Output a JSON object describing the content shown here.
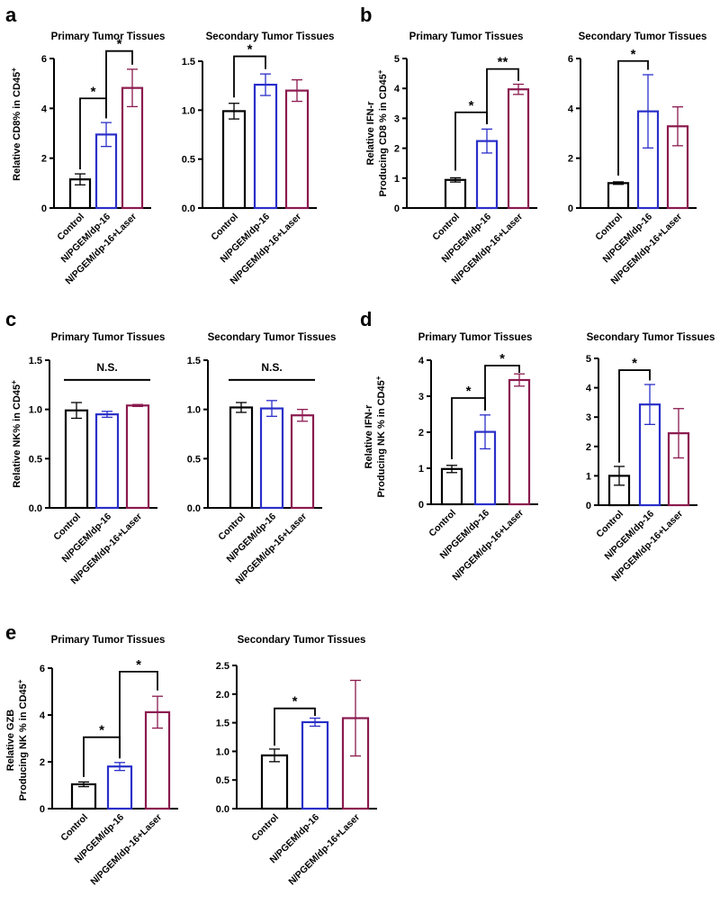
{
  "colors": {
    "control": "#000000",
    "n_pgem": "#2a2fc8",
    "laser": "#8b1a4f"
  },
  "chart_data": [
    {
      "type": "bar",
      "panel": "a",
      "title": "Primary Tumor Tissues",
      "ylabel": "Relative CD8% in CD45",
      "ylabel_sup": "+",
      "categories": [
        "Control",
        "N/PGEM/dp-16",
        "N/PGEM/dp-16+Laser"
      ],
      "values": [
        1.15,
        2.95,
        4.82
      ],
      "errors": [
        0.22,
        0.48,
        0.75
      ],
      "ylim": [
        0,
        6
      ],
      "yticks": [
        0,
        2,
        4,
        6
      ],
      "ytick_labels": [
        "0",
        "2",
        "4",
        "6"
      ],
      "annotations": [
        {
          "from": 0,
          "to": 1,
          "y": 4.4,
          "drop_from": 1.55,
          "drop_to": 3.6,
          "label": "*"
        },
        {
          "from": 1,
          "to": 2,
          "y": 6.3,
          "drop_from": 3.6,
          "drop_to": 5.75,
          "label": "*"
        }
      ]
    },
    {
      "type": "bar",
      "panel": "a2",
      "title": "Secondary Tumor Tissues",
      "ylabel": "",
      "categories": [
        "Control",
        "N/PGEM/dp-16",
        "N/PGEM/dp-16+Laser"
      ],
      "values": [
        0.99,
        1.26,
        1.2
      ],
      "errors": [
        0.08,
        0.11,
        0.11
      ],
      "ylim": [
        0,
        1.5
      ],
      "yticks": [
        0,
        0.5,
        1,
        1.5
      ],
      "ytick_labels": [
        "0.0",
        "0.5",
        "1.0",
        "1.5"
      ],
      "annotations": [
        {
          "from": 0,
          "to": 1,
          "y": 1.55,
          "drop_from": 1.13,
          "drop_to": 1.42,
          "label": "*"
        }
      ]
    },
    {
      "type": "bar",
      "panel": "b",
      "title": "Primary Tumor Tissues",
      "ylabel": "Relative IFN-r",
      "ylabel2": "Producing CD8 % in CD45",
      "ylabel_sup": "+",
      "categories": [
        "Control",
        "N/PGEM/dp-16",
        "N/PGEM/dp-16+Laser"
      ],
      "values": [
        0.94,
        2.24,
        3.97
      ],
      "errors": [
        0.07,
        0.4,
        0.17
      ],
      "ylim": [
        0,
        5
      ],
      "yticks": [
        0,
        1,
        2,
        3,
        4,
        5
      ],
      "ytick_labels": [
        "0",
        "1",
        "2",
        "3",
        "4",
        "5"
      ],
      "annotations": [
        {
          "from": 0,
          "to": 1,
          "y": 3.2,
          "drop_from": 1.25,
          "drop_to": 2.8,
          "label": "*"
        },
        {
          "from": 1,
          "to": 2,
          "y": 4.65,
          "drop_from": 2.8,
          "drop_to": 4.25,
          "label": "**"
        }
      ]
    },
    {
      "type": "bar",
      "panel": "b2",
      "title": "Secondary Tumor Tissues",
      "ylabel": "",
      "categories": [
        "Control",
        "N/PGEM/dp-16",
        "N/PGEM/dp-16+Laser"
      ],
      "values": [
        1.0,
        3.88,
        3.28
      ],
      "errors": [
        0.05,
        1.47,
        0.78
      ],
      "ylim": [
        0,
        6
      ],
      "yticks": [
        0,
        2,
        4,
        6
      ],
      "ytick_labels": [
        "0",
        "2",
        "4",
        "6"
      ],
      "annotations": [
        {
          "from": 0,
          "to": 1,
          "y": 5.9,
          "drop_from": 1.3,
          "drop_to": 5.55,
          "label": "*"
        }
      ]
    },
    {
      "type": "bar",
      "panel": "c",
      "title": "Primary Tumor Tissues",
      "ylabel": "Relative NK% in CD45",
      "ylabel_sup": "+",
      "categories": [
        "Control",
        "N/PGEM/dp-16",
        "N/PGEM/dp-16+Laser"
      ],
      "values": [
        0.99,
        0.95,
        1.04
      ],
      "errors": [
        0.08,
        0.03,
        0.01
      ],
      "ylim": [
        0,
        1.5
      ],
      "yticks": [
        0,
        0.5,
        1,
        1.5
      ],
      "ytick_labels": [
        "0.0",
        "0.5",
        "1.0",
        "1.5"
      ],
      "ns_line": {
        "y": 1.3,
        "label": "N.S."
      }
    },
    {
      "type": "bar",
      "panel": "c2",
      "title": "Secondary Tumor Tissues",
      "ylabel": "",
      "categories": [
        "Control",
        "N/PGEM/dp-16",
        "N/PGEM/dp-16+Laser"
      ],
      "values": [
        1.02,
        1.01,
        0.94
      ],
      "errors": [
        0.05,
        0.08,
        0.06
      ],
      "ylim": [
        0,
        1.5
      ],
      "yticks": [
        0,
        0.5,
        1,
        1.5
      ],
      "ytick_labels": [
        "0.0",
        "0.5",
        "1.0",
        "1.5"
      ],
      "ns_line": {
        "y": 1.3,
        "label": "N.S."
      }
    },
    {
      "type": "bar",
      "panel": "d",
      "title": "Primary Tumor Tissues",
      "ylabel": "Relative IFN-r",
      "ylabel2": "Producing NK % in CD45",
      "ylabel_sup": "+",
      "categories": [
        "Control",
        "N/PGEM/dp-16",
        "N/PGEM/dp-16+Laser"
      ],
      "values": [
        0.98,
        2.01,
        3.45
      ],
      "errors": [
        0.1,
        0.47,
        0.17
      ],
      "ylim": [
        0,
        4
      ],
      "yticks": [
        0,
        1,
        2,
        3,
        4
      ],
      "ytick_labels": [
        "0",
        "1",
        "2",
        "3",
        "4"
      ],
      "annotations": [
        {
          "from": 0,
          "to": 1,
          "y": 2.95,
          "drop_from": 1.25,
          "drop_to": 2.6,
          "label": "*"
        },
        {
          "from": 1,
          "to": 2,
          "y": 3.85,
          "drop_from": 2.6,
          "drop_to": 3.65,
          "label": "*"
        }
      ]
    },
    {
      "type": "bar",
      "panel": "d2",
      "title": "Secondary Tumor Tissues",
      "ylabel": "",
      "categories": [
        "Control",
        "N/PGEM/dp-16",
        "N/PGEM/dp-16+Laser"
      ],
      "values": [
        1.0,
        3.43,
        2.45
      ],
      "errors": [
        0.32,
        0.68,
        0.84
      ],
      "ylim": [
        0,
        5
      ],
      "yticks": [
        0,
        1,
        2,
        3,
        4,
        5
      ],
      "ytick_labels": [
        "0",
        "1",
        "2",
        "3",
        "4",
        "5"
      ],
      "annotations": [
        {
          "from": 0,
          "to": 1,
          "y": 4.6,
          "drop_from": 1.45,
          "drop_to": 4.25,
          "label": "*"
        }
      ]
    },
    {
      "type": "bar",
      "panel": "e",
      "title": "Primary Tumor Tissues",
      "ylabel": "Relative GZB",
      "ylabel2": "Producing NK % in CD45",
      "ylabel_sup": "+",
      "categories": [
        "Control",
        "N/PGEM/dp-16",
        "N/PGEM/dp-16+Laser"
      ],
      "values": [
        1.04,
        1.8,
        4.12
      ],
      "errors": [
        0.1,
        0.17,
        0.68
      ],
      "ylim": [
        0,
        6
      ],
      "yticks": [
        0,
        2,
        4,
        6
      ],
      "ytick_labels": [
        "0",
        "2",
        "4",
        "6"
      ],
      "annotations": [
        {
          "from": 0,
          "to": 1,
          "y": 3.05,
          "drop_from": 1.35,
          "drop_to": 2.15,
          "label": "*"
        },
        {
          "from": 1,
          "to": 2,
          "y": 5.85,
          "drop_from": 2.15,
          "drop_to": 5.05,
          "label": "*"
        }
      ]
    },
    {
      "type": "bar",
      "panel": "e2",
      "title": "Secondary Tumor Tissues",
      "ylabel": "",
      "categories": [
        "Control",
        "N/PGEM/dp-16",
        "N/PGEM/dp-16+Laser"
      ],
      "values": [
        0.93,
        1.51,
        1.58
      ],
      "errors": [
        0.11,
        0.07,
        0.66
      ],
      "ylim": [
        0,
        2.5
      ],
      "yticks": [
        0,
        0.5,
        1,
        1.5,
        2,
        2.5
      ],
      "ytick_labels": [
        "0.0",
        "0.5",
        "1.0",
        "1.5",
        "2.0",
        "2.5"
      ],
      "annotations": [
        {
          "from": 0,
          "to": 1,
          "y": 1.75,
          "drop_from": 1.1,
          "drop_to": 1.62,
          "label": "*"
        }
      ]
    }
  ],
  "panel_labels": [
    "a",
    "b",
    "c",
    "d",
    "e"
  ]
}
